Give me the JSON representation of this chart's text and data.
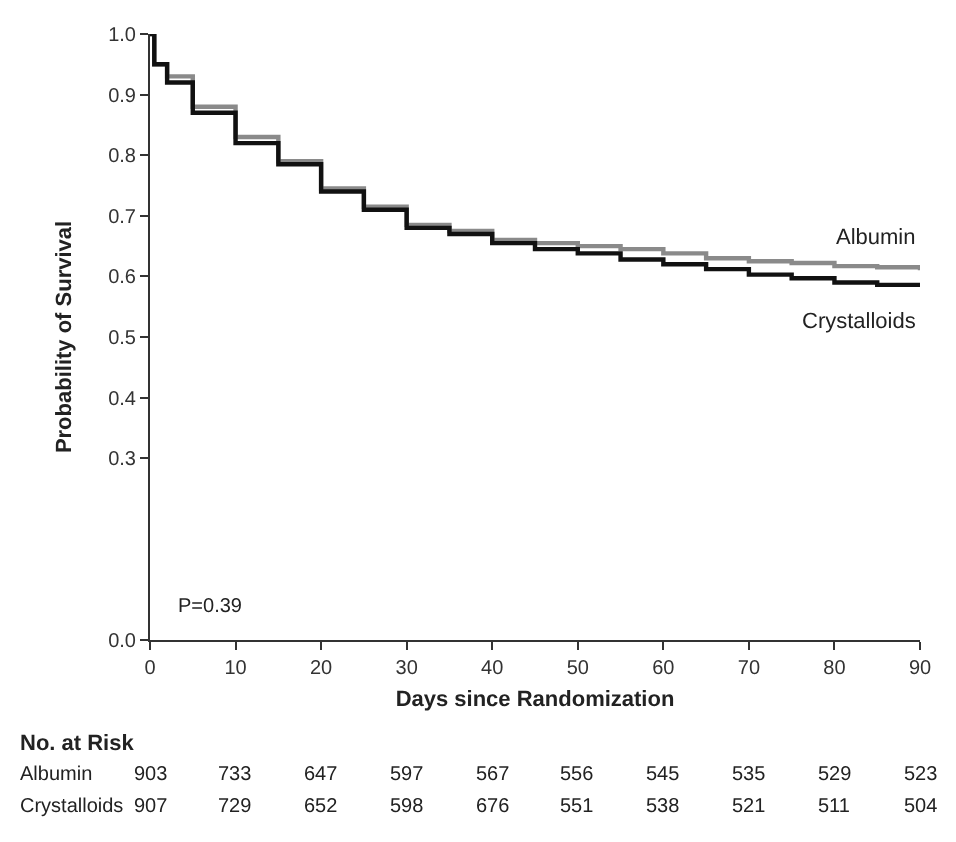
{
  "chart_data": {
    "type": "step",
    "xlabel": "Days since Randomization",
    "ylabel": "Probability of Survival",
    "xlim": [
      0,
      90
    ],
    "xticks": [
      0,
      10,
      20,
      30,
      40,
      50,
      60,
      70,
      80,
      90
    ],
    "ylim": [
      0,
      1.0
    ],
    "yticks": [
      {
        "value": 0,
        "label": "0.0"
      },
      0.3,
      0.4,
      0.5,
      0.6,
      0.7,
      0.8,
      0.9,
      {
        "value": 1.0,
        "label": "1.0"
      }
    ],
    "x": [
      0,
      0.5,
      2,
      5,
      10,
      15,
      20,
      25,
      30,
      35,
      40,
      45,
      50,
      55,
      60,
      65,
      70,
      75,
      80,
      85,
      90
    ],
    "series": [
      {
        "name": "Albumin",
        "color": "#8a8a8a",
        "values": [
          1.0,
          0.95,
          0.93,
          0.88,
          0.83,
          0.79,
          0.745,
          0.715,
          0.685,
          0.675,
          0.66,
          0.655,
          0.65,
          0.645,
          0.638,
          0.63,
          0.625,
          0.622,
          0.617,
          0.615,
          0.61
        ]
      },
      {
        "name": "Crystalloids",
        "color": "#111111",
        "values": [
          1.0,
          0.95,
          0.92,
          0.87,
          0.82,
          0.785,
          0.74,
          0.71,
          0.68,
          0.67,
          0.655,
          0.645,
          0.638,
          0.628,
          0.62,
          0.612,
          0.603,
          0.597,
          0.59,
          0.586,
          0.583
        ]
      }
    ],
    "annotations": [
      "P=0.39",
      "No. at Risk",
      "Albumin",
      "903",
      "733",
      "647",
      "597",
      "567",
      "556",
      "545",
      "535",
      "529",
      "523",
      "Crystalloids",
      "907",
      "729",
      "652",
      "598",
      "676",
      "551",
      "538",
      "521",
      "511",
      "504"
    ],
    "legend": false,
    "marker": "none",
    "line_style": "solid"
  }
}
